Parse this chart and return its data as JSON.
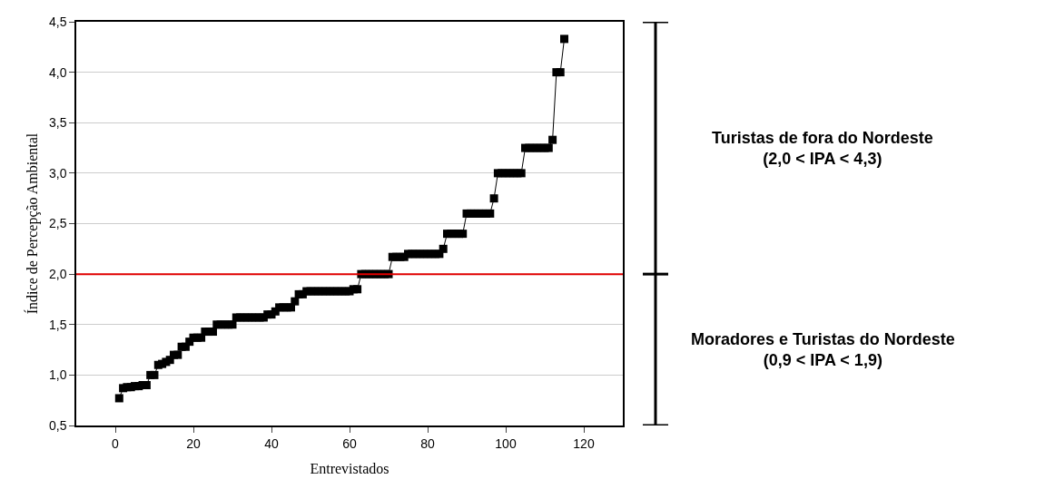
{
  "chart_data": {
    "type": "line",
    "xlabel": "Entrevistados",
    "ylabel": "Índice de Percepção Ambiental",
    "x": [
      1,
      2,
      3,
      4,
      5,
      6,
      7,
      8,
      9,
      10,
      11,
      12,
      13,
      14,
      15,
      16,
      17,
      18,
      19,
      20,
      21,
      22,
      23,
      24,
      25,
      26,
      27,
      28,
      29,
      30,
      31,
      32,
      33,
      34,
      35,
      36,
      37,
      38,
      39,
      40,
      41,
      42,
      43,
      44,
      45,
      46,
      47,
      48,
      49,
      50,
      51,
      52,
      53,
      54,
      55,
      56,
      57,
      58,
      59,
      60,
      61,
      62,
      63,
      64,
      65,
      66,
      67,
      68,
      69,
      70,
      71,
      72,
      73,
      74,
      75,
      76,
      77,
      78,
      79,
      80,
      81,
      82,
      83,
      84,
      85,
      86,
      87,
      88,
      89,
      90,
      91,
      92,
      93,
      94,
      95,
      96,
      97,
      98,
      99,
      100,
      101,
      102,
      103,
      104,
      105,
      106,
      107,
      108,
      109,
      110,
      111,
      112,
      113,
      114,
      115
    ],
    "series": [
      {
        "color": "#000000",
        "values": [
          0.77,
          0.87,
          0.88,
          0.88,
          0.89,
          0.89,
          0.9,
          0.9,
          1.0,
          1.0,
          1.1,
          1.11,
          1.13,
          1.15,
          1.2,
          1.2,
          1.28,
          1.28,
          1.33,
          1.37,
          1.37,
          1.37,
          1.43,
          1.43,
          1.43,
          1.5,
          1.5,
          1.5,
          1.5,
          1.5,
          1.57,
          1.57,
          1.57,
          1.57,
          1.57,
          1.57,
          1.57,
          1.57,
          1.6,
          1.6,
          1.63,
          1.67,
          1.67,
          1.67,
          1.67,
          1.73,
          1.8,
          1.8,
          1.83,
          1.83,
          1.83,
          1.83,
          1.83,
          1.83,
          1.83,
          1.83,
          1.83,
          1.83,
          1.83,
          1.83,
          1.85,
          1.85,
          2.0,
          2.0,
          2.0,
          2.0,
          2.0,
          2.0,
          2.0,
          2.0,
          2.17,
          2.17,
          2.17,
          2.17,
          2.2,
          2.2,
          2.2,
          2.2,
          2.2,
          2.2,
          2.2,
          2.2,
          2.2,
          2.25,
          2.4,
          2.4,
          2.4,
          2.4,
          2.4,
          2.6,
          2.6,
          2.6,
          2.6,
          2.6,
          2.6,
          2.6,
          2.75,
          3.0,
          3.0,
          3.0,
          3.0,
          3.0,
          3.0,
          3.0,
          3.25,
          3.25,
          3.25,
          3.25,
          3.25,
          3.25,
          3.25,
          3.33,
          4.0,
          4.0,
          4.33
        ]
      }
    ],
    "xlim": [
      -10,
      130
    ],
    "xticks": [
      0,
      20,
      40,
      60,
      80,
      100,
      120
    ],
    "ylim": [
      0.5,
      4.5
    ],
    "yticks": [
      {
        "value": 0.5,
        "label": "0,5"
      },
      {
        "value": 1.0,
        "label": "1,0"
      },
      {
        "value": 1.5,
        "label": "1,5"
      },
      {
        "value": 2.0,
        "label": "2,0"
      },
      {
        "value": 2.5,
        "label": "2,5"
      },
      {
        "value": 3.0,
        "label": "3,0"
      },
      {
        "value": 3.5,
        "label": "3,5"
      },
      {
        "value": 4.0,
        "label": "4,0"
      },
      {
        "value": 4.5,
        "label": "4,5"
      }
    ],
    "grid": "y",
    "marker": "square",
    "line_style": "solid",
    "ref_lines": [
      {
        "axis": "y",
        "value": 2.0,
        "color": "#e00000",
        "line_style": "solid"
      }
    ],
    "annotations": [
      "Turistas de fora do Nordeste\n(2,0 < IPA < 4,3)",
      "Moradores e Turistas do Nordeste\n(0,9 < IPA < 1,9)"
    ]
  }
}
